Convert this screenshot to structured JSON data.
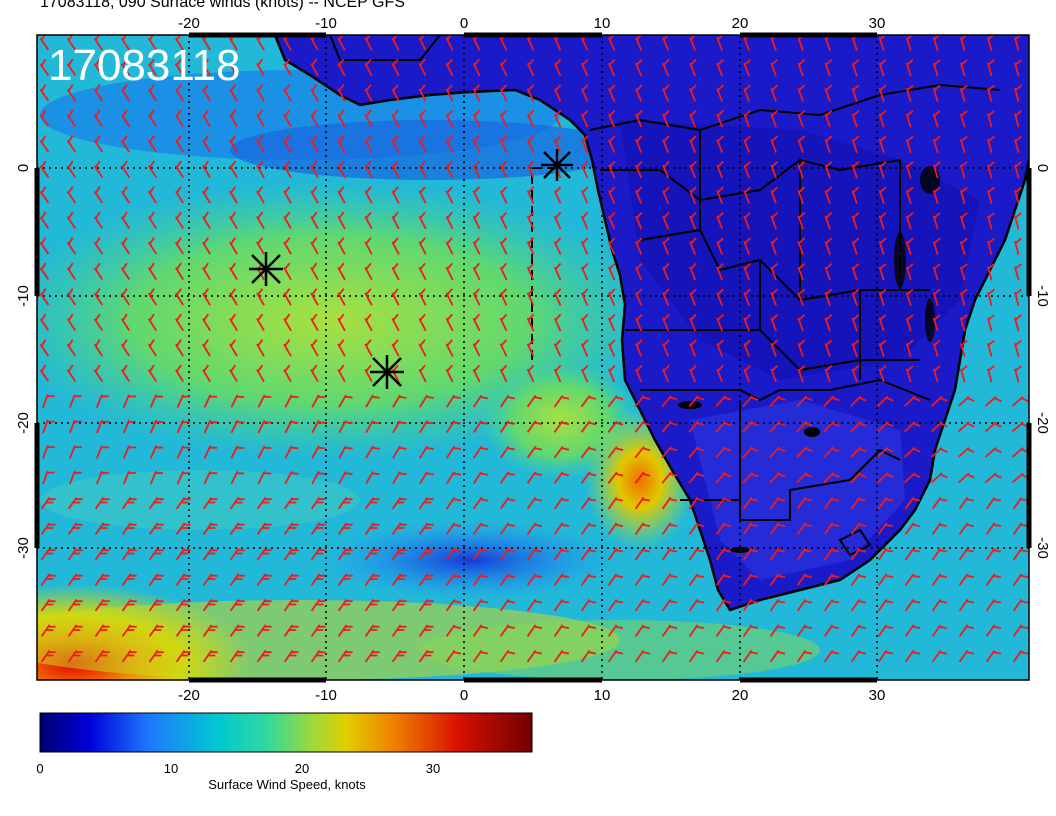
{
  "title": "17083118, 090 Surface winds (knots) -- NCEP GFS",
  "stamp": "17083118",
  "x_tick_labels": [
    "-20",
    "-10",
    "0",
    "10",
    "20",
    "30"
  ],
  "y_tick_labels": [
    "0",
    "-10",
    "-20",
    "-30"
  ],
  "colorbar": {
    "label": "Surface Wind Speed, knots",
    "tick_labels": [
      "0",
      "10",
      "20",
      "30"
    ],
    "colors": [
      "#000070",
      "#0000d8",
      "#1e78ff",
      "#00c8d0",
      "#30d8a0",
      "#9ad840",
      "#e0d000",
      "#f08000",
      "#d81000",
      "#700000"
    ]
  },
  "markers": [
    "storm-marker-1",
    "storm-marker-2",
    "storm-marker-3"
  ],
  "colors": {
    "barb": "#ee1c1c",
    "land": "#1a1ac8",
    "coast": "#000000"
  }
}
